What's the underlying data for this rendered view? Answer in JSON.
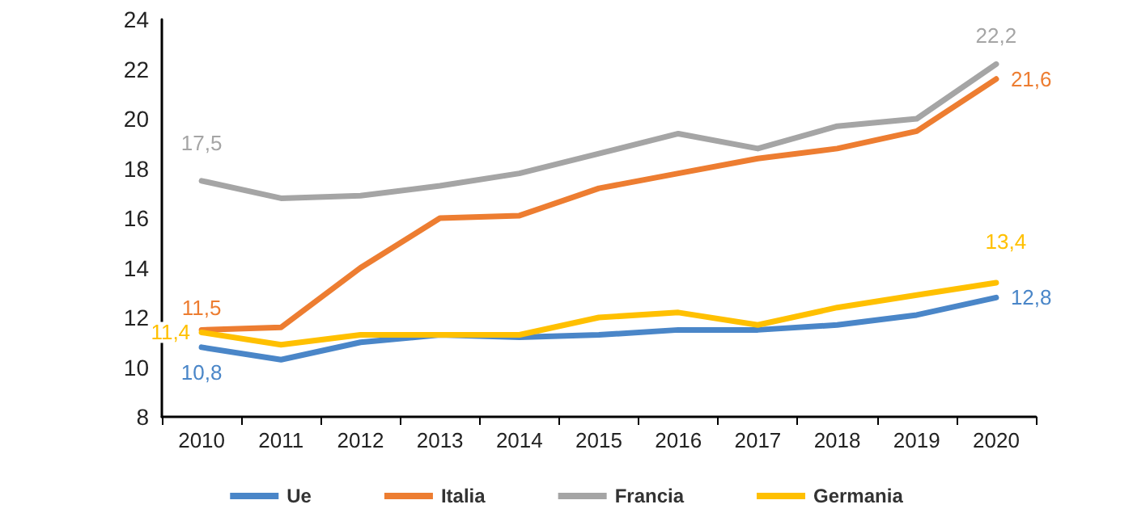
{
  "chart_data": {
    "type": "line",
    "categories": [
      "2010",
      "2011",
      "2012",
      "2013",
      "2014",
      "2015",
      "2016",
      "2017",
      "2018",
      "2019",
      "2020"
    ],
    "series": [
      {
        "name": "Ue",
        "color": "#4a86c8",
        "values": [
          10.8,
          10.3,
          11.0,
          11.3,
          11.2,
          11.3,
          11.5,
          11.5,
          11.7,
          12.1,
          12.8
        ],
        "value_labels": [
          "10,8",
          null,
          null,
          null,
          null,
          null,
          null,
          null,
          null,
          null,
          "12,8"
        ]
      },
      {
        "name": "Italia",
        "color": "#ed7d31",
        "values": [
          11.5,
          11.6,
          14.0,
          16.0,
          16.1,
          17.2,
          17.8,
          18.4,
          18.8,
          19.5,
          21.6
        ],
        "value_labels": [
          "11,5",
          null,
          null,
          null,
          null,
          null,
          null,
          null,
          null,
          null,
          "21,6"
        ]
      },
      {
        "name": "Francia",
        "color": "#a5a5a5",
        "values": [
          17.5,
          16.8,
          16.9,
          17.3,
          17.8,
          18.6,
          19.4,
          18.8,
          19.7,
          20.0,
          22.2
        ],
        "value_labels": [
          "17,5",
          null,
          null,
          null,
          null,
          null,
          null,
          null,
          null,
          null,
          "22,2"
        ]
      },
      {
        "name": "Germania",
        "color": "#ffc000",
        "values": [
          11.4,
          10.9,
          11.3,
          11.3,
          11.3,
          12.0,
          12.2,
          11.7,
          12.4,
          12.9,
          13.4
        ],
        "value_labels": [
          "11,4",
          null,
          null,
          null,
          null,
          null,
          null,
          null,
          null,
          null,
          "13,4"
        ]
      }
    ],
    "ylim": [
      8,
      24
    ],
    "yticks": [
      8,
      10,
      12,
      14,
      16,
      18,
      20,
      22,
      24
    ],
    "grid": false,
    "legend": "bottom",
    "marker": "none",
    "line_style": "solid"
  }
}
